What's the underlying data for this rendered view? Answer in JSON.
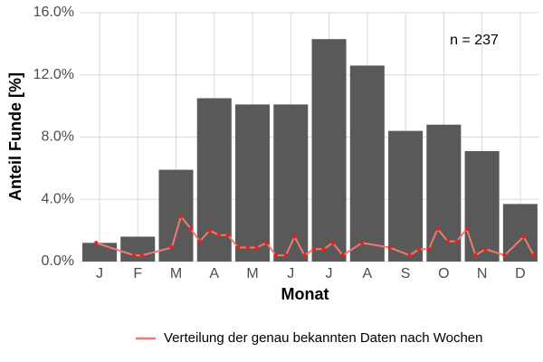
{
  "chart_data": {
    "type": "bar",
    "xlabel": "Monat",
    "ylabel": "Anteil Funde [%]",
    "annotation": "n = 237",
    "categories": [
      "J",
      "F",
      "M",
      "A",
      "M",
      "J",
      "J",
      "A",
      "S",
      "O",
      "N",
      "D"
    ],
    "values": [
      1.2,
      1.6,
      5.9,
      10.5,
      10.1,
      10.1,
      14.3,
      12.6,
      8.4,
      8.8,
      7.1,
      3.7
    ],
    "color": "#595959",
    "ylim": [
      0,
      16
    ],
    "yticks": [
      {
        "value": 0,
        "label": "0.0%"
      },
      {
        "value": 4,
        "label": "4.0%"
      },
      {
        "value": 8,
        "label": "8.0%"
      },
      {
        "value": 12,
        "label": "12.0%"
      },
      {
        "value": 16,
        "label": "16.0%"
      }
    ],
    "xlim": [
      0.48,
      12.5
    ],
    "grid": true,
    "legend": "bottom",
    "line": {
      "type": "line",
      "name": "Verteilung der genau bekannten Daten nach Wochen",
      "color": "#f07a70",
      "point_color": "#e8201a",
      "x": [
        0.91,
        1.9,
        2.11,
        2.89,
        3.13,
        3.39,
        3.62,
        3.88,
        4.12,
        4.36,
        4.62,
        4.88,
        5.11,
        5.37,
        5.61,
        5.87,
        6.1,
        6.36,
        6.6,
        6.86,
        7.1,
        7.36,
        7.86,
        8.59,
        9.11,
        9.35,
        9.61,
        9.84,
        10.1,
        10.34,
        10.6,
        10.83,
        11.09,
        11.59,
        12.09,
        12.35
      ],
      "values": [
        1.2,
        0.4,
        0.4,
        0.9,
        2.9,
        2.1,
        1.3,
        2.0,
        1.7,
        1.7,
        0.9,
        0.9,
        0.9,
        1.2,
        0.4,
        0.4,
        1.6,
        0.4,
        0.8,
        0.8,
        1.2,
        0.4,
        1.2,
        0.9,
        0.4,
        0.8,
        0.8,
        2.1,
        1.3,
        1.3,
        2.1,
        0.4,
        0.8,
        0.4,
        1.6,
        0.4
      ]
    }
  }
}
